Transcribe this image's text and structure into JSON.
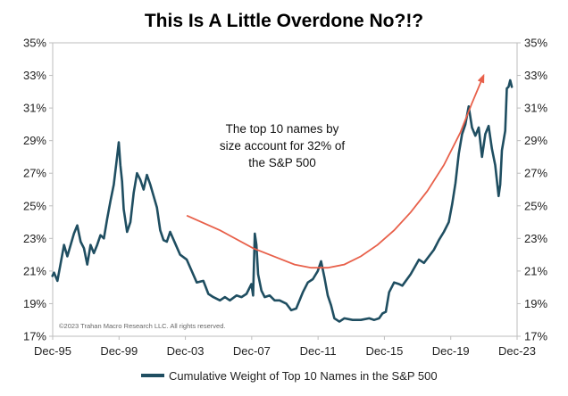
{
  "chart_data": {
    "type": "line",
    "title": "This Is A Little Overdone No?!?",
    "xlabel": "",
    "ylabel": "",
    "x_start": "Dec-95",
    "x_end": "Dec-23",
    "x_ticks": [
      "Dec-95",
      "Dec-99",
      "Dec-03",
      "Dec-07",
      "Dec-11",
      "Dec-15",
      "Dec-19",
      "Dec-23"
    ],
    "ylim": [
      17,
      35
    ],
    "y_ticks": [
      "35%",
      "33%",
      "31%",
      "29%",
      "27%",
      "25%",
      "23%",
      "21%",
      "19%",
      "17%"
    ],
    "y_axis_both_sides": true,
    "grid": false,
    "legend_position": "bottom",
    "annotation": {
      "lines": [
        "The top 10 names by",
        "size account for 32% of",
        "the S&P 500"
      ]
    },
    "copyright": "©2023 Trahan Macro Research LLC. All rights reserved.",
    "series": [
      {
        "name": "Cumulative Weight of Top 10 Names in the S&P 500",
        "color": "#1f4e61",
        "x": [
          1995.9,
          1996.0,
          1996.2,
          1996.4,
          1996.6,
          1996.8,
          1997.0,
          1997.2,
          1997.4,
          1997.6,
          1997.8,
          1998.0,
          1998.2,
          1998.4,
          1998.6,
          1998.8,
          1999.0,
          1999.2,
          1999.4,
          1999.6,
          1999.8,
          1999.9,
          2000.0,
          2000.1,
          2000.2,
          2000.4,
          2000.6,
          2000.8,
          2001.0,
          2001.2,
          2001.4,
          2001.6,
          2001.8,
          2002.0,
          2002.2,
          2002.4,
          2002.6,
          2002.8,
          2003.0,
          2003.3,
          2003.6,
          2004.0,
          2004.3,
          2004.6,
          2005.0,
          2005.3,
          2005.6,
          2006.0,
          2006.3,
          2006.6,
          2007.0,
          2007.3,
          2007.6,
          2007.9,
          2008.0,
          2008.1,
          2008.2,
          2008.3,
          2008.5,
          2008.7,
          2009.0,
          2009.3,
          2009.6,
          2010.0,
          2010.3,
          2010.6,
          2011.0,
          2011.3,
          2011.6,
          2011.9,
          2012.1,
          2012.3,
          2012.5,
          2012.7,
          2012.9,
          2013.2,
          2013.5,
          2014.0,
          2014.5,
          2015.0,
          2015.3,
          2015.6,
          2015.8,
          2016.0,
          2016.2,
          2016.5,
          2016.8,
          2017.0,
          2017.5,
          2018.0,
          2018.3,
          2018.6,
          2018.9,
          2019.2,
          2019.5,
          2019.8,
          2020.0,
          2020.2,
          2020.4,
          2020.6,
          2020.8,
          2021.0,
          2021.2,
          2021.4,
          2021.6,
          2021.8,
          2022.0,
          2022.2,
          2022.4,
          2022.6,
          2022.8,
          2022.9,
          2023.0,
          2023.2,
          2023.3,
          2023.4,
          2023.5,
          2023.6
        ],
        "y": [
          20.7,
          20.9,
          20.4,
          21.5,
          22.6,
          21.9,
          22.6,
          23.3,
          23.8,
          22.8,
          22.4,
          21.4,
          22.6,
          22.1,
          22.6,
          23.2,
          23.0,
          24.2,
          25.3,
          26.3,
          28.0,
          28.9,
          27.5,
          26.5,
          24.8,
          23.4,
          24.0,
          25.8,
          27.0,
          26.6,
          26.0,
          26.9,
          26.3,
          25.6,
          24.9,
          23.5,
          22.9,
          22.8,
          23.4,
          22.7,
          22.0,
          21.7,
          21.0,
          20.3,
          20.4,
          19.6,
          19.4,
          19.2,
          19.4,
          19.2,
          19.5,
          19.4,
          19.6,
          20.2,
          19.5,
          23.3,
          22.6,
          20.8,
          19.8,
          19.4,
          19.5,
          19.2,
          19.2,
          19.0,
          18.6,
          18.7,
          19.7,
          20.3,
          20.5,
          21.0,
          21.6,
          20.6,
          19.5,
          18.9,
          18.1,
          17.9,
          18.1,
          18.0,
          18.0,
          18.1,
          18.0,
          18.1,
          18.4,
          18.5,
          19.7,
          20.3,
          20.2,
          20.1,
          20.8,
          21.7,
          21.5,
          21.9,
          22.3,
          22.9,
          23.4,
          24.0,
          25.1,
          26.4,
          28.2,
          29.4,
          30.0,
          31.1,
          29.8,
          29.3,
          29.8,
          28.0,
          29.4,
          29.9,
          28.5,
          27.5,
          25.6,
          26.3,
          28.4,
          29.6,
          32.2,
          32.3,
          32.7,
          32.3
        ]
      },
      {
        "color": "#e8604a",
        "x": [
          2004.0,
          2006.0,
          2008.0,
          2009.5,
          2010.5,
          2011.5,
          2012.5,
          2013.5,
          2014.5,
          2015.5,
          2016.5,
          2017.5,
          2018.5,
          2019.5,
          2020.5,
          2021.2,
          2021.9
        ],
        "y": [
          24.4,
          23.5,
          22.4,
          21.8,
          21.4,
          21.2,
          21.2,
          21.4,
          21.9,
          22.6,
          23.5,
          24.6,
          25.9,
          27.5,
          29.5,
          31.3,
          33.0
        ]
      }
    ]
  }
}
